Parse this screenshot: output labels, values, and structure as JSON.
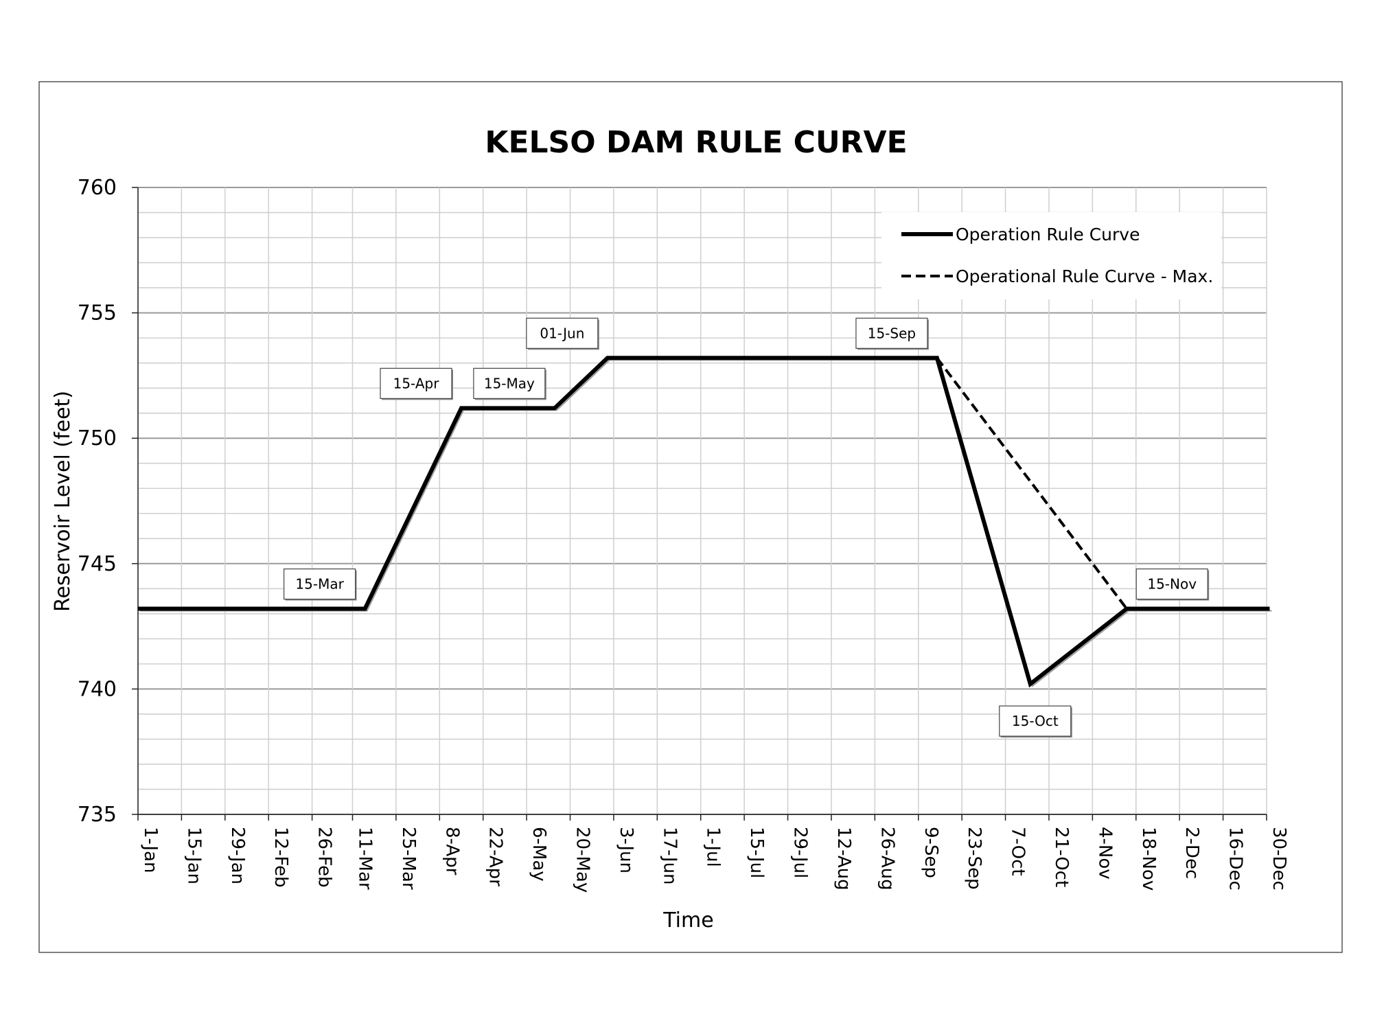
{
  "chart_data": {
    "type": "line",
    "title": "KELSO DAM RULE CURVE",
    "xlabel": "Time",
    "ylabel": "Reservoir Level (feet)",
    "ylim": [
      735,
      760
    ],
    "yticks": [
      735,
      740,
      745,
      750,
      755,
      760
    ],
    "x_tick_labels": [
      "1-Jan",
      "15-Jan",
      "29-Jan",
      "12-Feb",
      "26-Feb",
      "11-Mar",
      "25-Mar",
      "8-Apr",
      "22-Apr",
      "6-May",
      "20-May",
      "3-Jun",
      "17-Jun",
      "1-Jul",
      "15-Jul",
      "29-Jul",
      "12-Aug",
      "26-Aug",
      "9-Sep",
      "23-Sep",
      "7-Oct",
      "21-Oct",
      "4-Nov",
      "18-Nov",
      "2-Dec",
      "16-Dec",
      "30-Dec"
    ],
    "grid": true,
    "legend_position": "top-right",
    "series": [
      {
        "name": "Operation Rule Curve",
        "style": "solid",
        "color": "#000000",
        "x": [
          "1-Jan",
          "15-Mar",
          "15-Apr",
          "15-May",
          "1-Jun",
          "15-Sep",
          "15-Oct",
          "15-Nov",
          "31-Dec"
        ],
        "y": [
          743.2,
          743.2,
          751.2,
          751.2,
          753.2,
          753.2,
          740.2,
          743.2,
          743.2
        ]
      },
      {
        "name": "Operational Rule Curve - Max.",
        "style": "dashed",
        "color": "#000000",
        "x": [
          "15-Sep",
          "15-Nov"
        ],
        "y": [
          753.2,
          743.2
        ]
      }
    ],
    "annotations": [
      {
        "text": "15-Mar",
        "x": "15-Mar",
        "y": 743.2,
        "placement": "above-left"
      },
      {
        "text": "15-Apr",
        "x": "15-Apr",
        "y": 751.2,
        "placement": "above-left"
      },
      {
        "text": "15-May",
        "x": "15-May",
        "y": 751.2,
        "placement": "above-left"
      },
      {
        "text": "01-Jun",
        "x": "1-Jun",
        "y": 753.2,
        "placement": "above-left"
      },
      {
        "text": "15-Sep",
        "x": "15-Sep",
        "y": 753.2,
        "placement": "above-left"
      },
      {
        "text": "15-Oct",
        "x": "15-Oct",
        "y": 740.2,
        "placement": "below"
      },
      {
        "text": "15-Nov",
        "x": "15-Nov",
        "y": 743.2,
        "placement": "above-right"
      }
    ]
  }
}
